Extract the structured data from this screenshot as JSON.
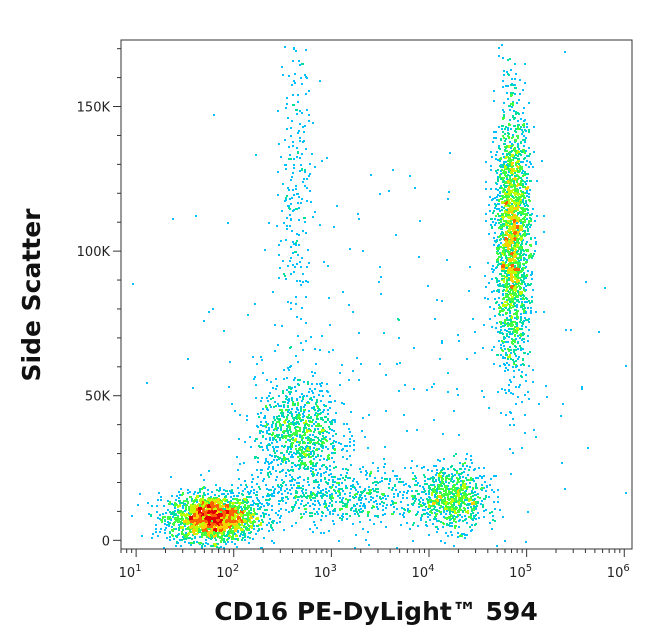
{
  "chart_data": {
    "type": "scatter",
    "subtype": "flow-cytometry-density-dot-plot",
    "title": "",
    "xlabel": "CD16 PE-DyLight™ 594",
    "ylabel": "Side Scatter",
    "x_scale": "log",
    "xlim": [
      7,
      1200000
    ],
    "ylim": [
      -3000,
      173000
    ],
    "x_ticks": [
      {
        "value": 10,
        "base": "10",
        "exp": "1"
      },
      {
        "value": 100,
        "base": "10",
        "exp": "2"
      },
      {
        "value": 1000,
        "base": "10",
        "exp": "3"
      },
      {
        "value": 10000,
        "base": "10",
        "exp": "4"
      },
      {
        "value": 100000,
        "base": "10",
        "exp": "5"
      },
      {
        "value": 1000000,
        "base": "10",
        "exp": "6"
      }
    ],
    "y_ticks": [
      {
        "value": 0,
        "label": "0"
      },
      {
        "value": 50000,
        "label": "50K"
      },
      {
        "value": 100000,
        "label": "100K"
      },
      {
        "value": 150000,
        "label": "150K"
      }
    ],
    "grid": false,
    "legend": "none",
    "colormap": [
      "#0000c8",
      "#0050ff",
      "#00c0ff",
      "#00e0a0",
      "#40ff40",
      "#c0ff00",
      "#ffd000",
      "#ff6000",
      "#e00000"
    ],
    "populations": [
      {
        "x_center": 60,
        "y_center": 8000,
        "x_spread_decades": 0.22,
        "y_spread": 4000,
        "count": 2200
      },
      {
        "x_center": 450,
        "y_center": 37000,
        "x_spread_decades": 0.22,
        "y_spread": 9000,
        "count": 900
      },
      {
        "x_center": 17000,
        "y_center": 15000,
        "x_spread_decades": 0.18,
        "y_spread": 5500,
        "count": 750
      },
      {
        "x_center": 70000,
        "y_center": 105000,
        "x_spread_decades": 0.09,
        "y_spread": 22000,
        "count": 2300
      },
      {
        "x_center": 420,
        "y_center": 130000,
        "x_spread_decades": 0.08,
        "y_spread": 30000,
        "count": 220
      },
      {
        "x_center": 1200,
        "y_center": 15000,
        "x_spread_decades": 0.55,
        "y_spread": 5000,
        "count": 650
      },
      {
        "x_center": 3000,
        "y_center": 60000,
        "x_spread_decades": 1.2,
        "y_spread": 40000,
        "count": 260
      }
    ]
  }
}
